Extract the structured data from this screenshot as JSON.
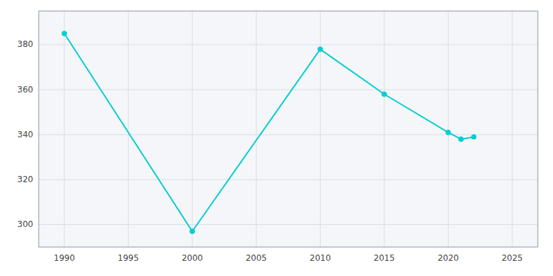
{
  "chart_data": {
    "type": "line",
    "x": [
      1990,
      2000,
      2010,
      2015,
      2020,
      2021,
      2022
    ],
    "values": [
      385,
      297,
      378,
      358,
      341,
      338,
      339
    ],
    "color": "#00CED1",
    "marker": "circle",
    "xlim": [
      1988,
      2027
    ],
    "ylim": [
      290,
      395
    ],
    "xticks": [
      1990,
      1995,
      2000,
      2005,
      2010,
      2015,
      2020,
      2025
    ],
    "yticks": [
      300,
      320,
      340,
      360,
      380
    ],
    "grid": true
  }
}
